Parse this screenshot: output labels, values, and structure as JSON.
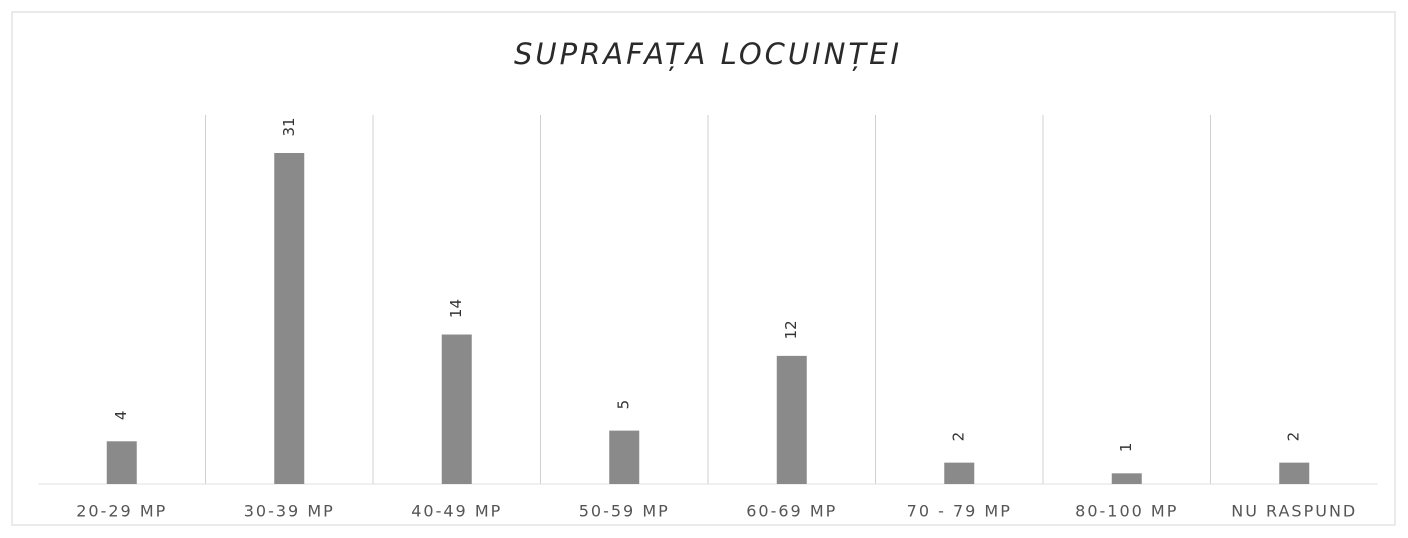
{
  "chart_data": {
    "type": "bar",
    "title": "SUPRAFAȚA LOCUINȚEI",
    "categories": [
      "20-29 MP",
      "30-39 MP",
      "40-49 MP",
      "50-59 MP",
      "60-69 MP",
      "70 - 79 MP",
      "80-100 MP",
      "NU RASPUND"
    ],
    "values": [
      4,
      31,
      14,
      5,
      12,
      2,
      1,
      2
    ],
    "color": "#8a8a8a"
  }
}
